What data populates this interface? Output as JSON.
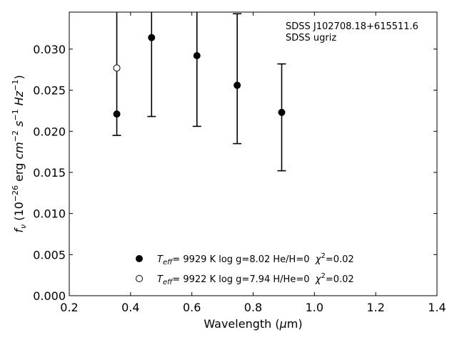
{
  "chart_data": {
    "type": "scatter",
    "xlabel": "Wavelength (μm)",
    "ylabel": "f_ν (10^−26 erg cm^−2 s^−1 Hz^−1)",
    "xlim": [
      0.2,
      1.4
    ],
    "ylim": [
      0.0,
      0.0345
    ],
    "xticks": [
      "0.2",
      "0.4",
      "0.6",
      "0.8",
      "1.0",
      "1.2",
      "1.4"
    ],
    "yticks": [
      "0.000",
      "0.005",
      "0.010",
      "0.015",
      "0.020",
      "0.025",
      "0.030"
    ],
    "annotations": [
      "SDSS J102708.18+615511.6",
      "SDSS ugriz"
    ],
    "observed": {
      "x": [
        0.3551,
        0.4686,
        0.6166,
        0.748,
        0.8932
      ],
      "y": [
        0.0289,
        0.0285,
        0.0297,
        0.0264,
        0.0217
      ],
      "err_low": [
        0.0195,
        0.0218,
        0.0206,
        0.0185,
        0.0152
      ],
      "err_high": [
        0.0385,
        0.0352,
        0.0388,
        0.0343,
        0.0282
      ]
    },
    "series": [
      {
        "name": "Teff= 9929 K log g=8.02 He/H=0 χ²=0.02",
        "marker": "filled-circle",
        "x": [
          0.3551,
          0.4686,
          0.6166,
          0.748,
          0.8932
        ],
        "y": [
          0.0221,
          0.0314,
          0.0292,
          0.0256,
          0.0223
        ]
      },
      {
        "name": "Teff= 9922 K log g=7.94 H/He=0 χ²=0.02",
        "marker": "open-circle",
        "x": [
          0.3551
        ],
        "y": [
          0.0277
        ]
      }
    ],
    "legend": {
      "placement": "bottom-center",
      "entries": [
        {
          "teff_label": "eff",
          "value": "= 9929 K log g=8.02 He/H=0",
          "chi": "=0.02"
        },
        {
          "teff_label": "eff",
          "value": "= 9922 K log g=7.94 H/He=0",
          "chi": "=0.02"
        }
      ]
    },
    "grid": false
  }
}
